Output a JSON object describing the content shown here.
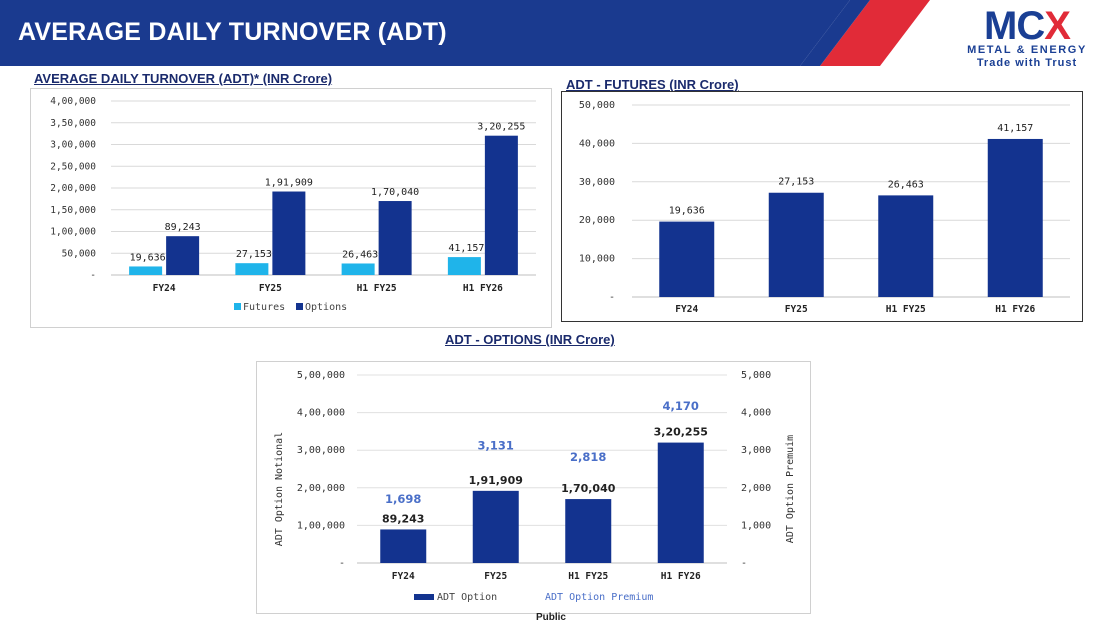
{
  "header": {
    "title": "AVERAGE DAILY TURNOVER (ADT)",
    "logo": {
      "main": "MCX",
      "sub": "METAL & ENERGY",
      "tagline": "Trade with Trust"
    },
    "colors": {
      "band": "#1a3a8f",
      "accent": "#e12b38"
    }
  },
  "footer": {
    "label": "Public"
  },
  "chart_data": [
    {
      "id": "adt",
      "type": "bar",
      "title": "AVERAGE DAILY TURNOVER (ADT)* (INR Crore)",
      "categories": [
        "FY24",
        "FY25",
        "H1 FY25",
        "H1 FY26"
      ],
      "series": [
        {
          "name": "Futures",
          "values": [
            19636,
            27153,
            26463,
            41157
          ],
          "labels": [
            "19,636",
            "27,153",
            "26,463",
            "41,157"
          ],
          "color": "#1fb4ea"
        },
        {
          "name": "Options",
          "values": [
            89243,
            191909,
            170040,
            320255
          ],
          "labels": [
            "89,243",
            "1,91,909",
            "1,70,040",
            "3,20,255"
          ],
          "color": "#13338f"
        }
      ],
      "ylim": [
        0,
        400000
      ],
      "yticks": [
        "-",
        "50,000",
        "1,00,000",
        "1,50,000",
        "2,00,000",
        "2,50,000",
        "3,00,000",
        "3,50,000",
        "4,00,000"
      ],
      "grid": true,
      "legend": "bottom"
    },
    {
      "id": "futures",
      "type": "bar",
      "title": "ADT - FUTURES (INR Crore)",
      "categories": [
        "FY24",
        "FY25",
        "H1 FY25",
        "H1 FY26"
      ],
      "series": [
        {
          "values": [
            19636,
            27153,
            26463,
            41157
          ],
          "labels": [
            "19,636",
            "27,153",
            "26,463",
            "41,157"
          ],
          "color": "#13338f"
        }
      ],
      "ylim": [
        0,
        50000
      ],
      "yticks": [
        "-",
        "10,000",
        "20,000",
        "30,000",
        "40,000",
        "50,000"
      ],
      "grid": true
    },
    {
      "id": "options",
      "type": "bar",
      "title": "ADT - OPTIONS (INR Crore)",
      "categories": [
        "FY24",
        "FY25",
        "H1 FY25",
        "H1 FY26"
      ],
      "series": [
        {
          "name": "ADT Option",
          "values": [
            89243,
            191909,
            170040,
            320255
          ],
          "labels": [
            "89,243",
            "1,91,909",
            "1,70,040",
            "3,20,255"
          ],
          "color": "#13338f",
          "axis": "left"
        },
        {
          "name": "ADT Option Premium",
          "values": [
            1698,
            3131,
            2818,
            4170
          ],
          "labels": [
            "1,698",
            "3,131",
            "2,818",
            "4,170"
          ],
          "color": "#4a6fc8",
          "axis": "right"
        }
      ],
      "ylim": [
        0,
        500000
      ],
      "y2lim": [
        0,
        5000
      ],
      "yticks": [
        "-",
        "1,00,000",
        "2,00,000",
        "3,00,000",
        "4,00,000",
        "5,00,000"
      ],
      "y2ticks": [
        "-",
        "1,000",
        "2,000",
        "3,000",
        "4,000",
        "5,000"
      ],
      "ylabel": "ADT Option Notional",
      "y2label": "ADT Option Premuim",
      "grid": true,
      "legend": "bottom"
    }
  ]
}
